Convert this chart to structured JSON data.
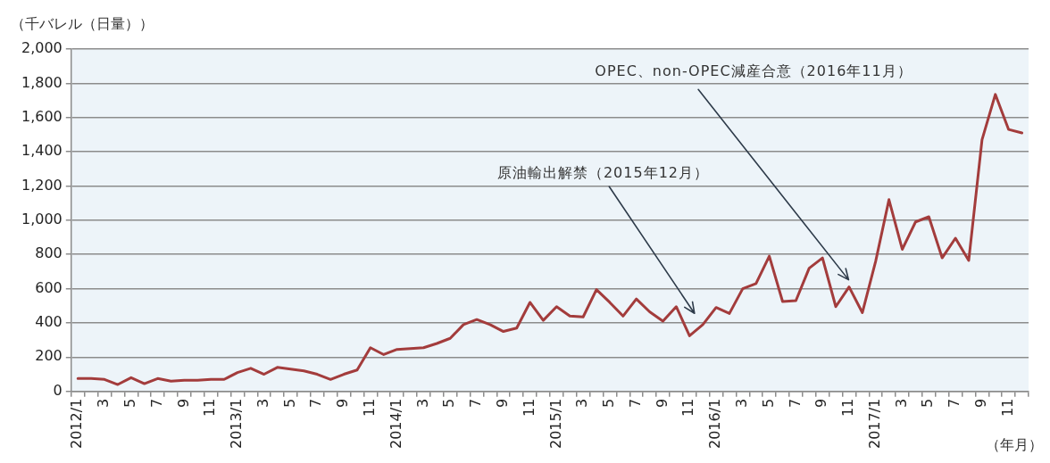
{
  "chart_data": {
    "type": "line",
    "ylabel": "（千バレル（日量））",
    "xlabel": "（年月）",
    "categories": [
      "2012/1",
      null,
      "3",
      null,
      "5",
      null,
      "7",
      null,
      "9",
      null,
      "11",
      null,
      "2013/1",
      null,
      "3",
      null,
      "5",
      null,
      "7",
      null,
      "9",
      null,
      "11",
      null,
      "2014/1",
      null,
      "3",
      null,
      "5",
      null,
      "7",
      null,
      "9",
      null,
      "11",
      null,
      "2015/1",
      null,
      "3",
      null,
      "5",
      null,
      "7",
      null,
      "9",
      null,
      "11",
      null,
      "2016/1",
      null,
      "3",
      null,
      "5",
      null,
      "7",
      null,
      "9",
      null,
      "11",
      null,
      "2017/1",
      null,
      "3",
      null,
      "5",
      null,
      "7",
      null,
      "9",
      null,
      "11",
      null
    ],
    "values": [
      75,
      75,
      70,
      40,
      80,
      45,
      75,
      60,
      65,
      65,
      70,
      70,
      110,
      135,
      100,
      140,
      130,
      120,
      100,
      70,
      100,
      125,
      255,
      215,
      245,
      250,
      255,
      280,
      310,
      390,
      420,
      390,
      350,
      370,
      520,
      415,
      495,
      440,
      435,
      595,
      520,
      440,
      540,
      465,
      410,
      495,
      325,
      390,
      490,
      455,
      600,
      630,
      790,
      525,
      530,
      720,
      780,
      495,
      610,
      460,
      760,
      1120,
      830,
      990,
      1020,
      780,
      895,
      765,
      1470,
      1735,
      1530,
      1510
    ],
    "color": "#a33c3c",
    "ylim": [
      0,
      2000
    ],
    "yticks": [
      0,
      200,
      400,
      600,
      800,
      {
        "value": 1000,
        "label": "1,000"
      },
      {
        "value": 1200,
        "label": "1,200"
      },
      {
        "value": 1400,
        "label": "1,400"
      },
      {
        "value": 1600,
        "label": "1,600"
      },
      {
        "value": 1800,
        "label": "1,800"
      },
      {
        "value": 2000,
        "label": "2,000"
      }
    ],
    "grid": "y",
    "marker": "none",
    "annotations": [
      "OPEC、non-OPEC減産合意（2016年11月）",
      "原油輸出解禁（2015年12月）"
    ]
  }
}
